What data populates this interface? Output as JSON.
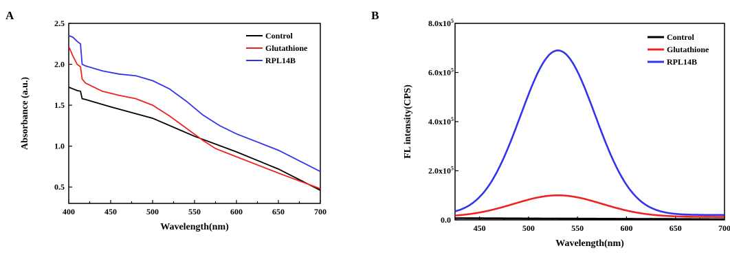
{
  "figure": {
    "panels": [
      "A",
      "B"
    ]
  },
  "chart_data": [
    {
      "panel": "A",
      "type": "line",
      "xlabel": "Wavelength(nm)",
      "ylabel": "Absorbance (a.u.)",
      "xlim": [
        400,
        700
      ],
      "ylim": [
        0.3,
        2.5
      ],
      "xticks": [
        400,
        450,
        500,
        550,
        600,
        650,
        700
      ],
      "xtick_labels": [
        "400",
        "450",
        "500",
        "550",
        "600",
        "650",
        "700"
      ],
      "yticks": [
        0.5,
        1.0,
        1.5,
        2.0,
        2.5
      ],
      "ytick_labels": [
        "0.5",
        "1.0",
        "1.5",
        "2.0",
        "2.5"
      ],
      "grid": false,
      "legend_position": "top-right",
      "series": [
        {
          "name": "Control",
          "color": "#000000",
          "points": [
            [
              400,
              1.72
            ],
            [
              405,
              1.7
            ],
            [
              410,
              1.68
            ],
            [
              414,
              1.67
            ],
            [
              416,
              1.58
            ],
            [
              420,
              1.57
            ],
            [
              450,
              1.48
            ],
            [
              500,
              1.34
            ],
            [
              550,
              1.12
            ],
            [
              600,
              0.93
            ],
            [
              650,
              0.72
            ],
            [
              700,
              0.46
            ]
          ]
        },
        {
          "name": "Glutathione",
          "color": "#ee2222",
          "points": [
            [
              400,
              2.22
            ],
            [
              405,
              2.1
            ],
            [
              410,
              2.0
            ],
            [
              414,
              1.97
            ],
            [
              416,
              1.82
            ],
            [
              420,
              1.77
            ],
            [
              440,
              1.67
            ],
            [
              460,
              1.62
            ],
            [
              480,
              1.58
            ],
            [
              500,
              1.5
            ],
            [
              520,
              1.37
            ],
            [
              540,
              1.22
            ],
            [
              560,
              1.07
            ],
            [
              575,
              0.97
            ],
            [
              600,
              0.87
            ],
            [
              650,
              0.67
            ],
            [
              700,
              0.48
            ]
          ]
        },
        {
          "name": "RPL14B",
          "color": "#3333ee",
          "points": [
            [
              400,
              2.35
            ],
            [
              405,
              2.33
            ],
            [
              410,
              2.28
            ],
            [
              414,
              2.25
            ],
            [
              416,
              2.0
            ],
            [
              420,
              1.98
            ],
            [
              440,
              1.92
            ],
            [
              460,
              1.88
            ],
            [
              480,
              1.86
            ],
            [
              500,
              1.8
            ],
            [
              520,
              1.7
            ],
            [
              540,
              1.55
            ],
            [
              560,
              1.38
            ],
            [
              580,
              1.25
            ],
            [
              600,
              1.15
            ],
            [
              625,
              1.05
            ],
            [
              650,
              0.95
            ],
            [
              675,
              0.82
            ],
            [
              700,
              0.69
            ]
          ]
        }
      ]
    },
    {
      "panel": "B",
      "type": "line",
      "xlabel": "Wavelength(nm)",
      "ylabel": "FL intensity(CPS)",
      "xlim": [
        425,
        700
      ],
      "ylim": [
        0,
        800000
      ],
      "xticks": [
        450,
        500,
        550,
        600,
        650,
        700
      ],
      "xtick_labels": [
        "450",
        "500",
        "550",
        "600",
        "650",
        "700"
      ],
      "yticks": [
        0,
        200000,
        400000,
        600000,
        800000
      ],
      "ytick_labels": [
        {
          "base": "0.0",
          "exp": ""
        },
        {
          "base": "2.0x10",
          "exp": "5"
        },
        {
          "base": "4.0x10",
          "exp": "5"
        },
        {
          "base": "6.0x10",
          "exp": "5"
        },
        {
          "base": "8.0x10",
          "exp": "5"
        }
      ],
      "grid": false,
      "legend_position": "top-right",
      "series": [
        {
          "name": "Control",
          "color": "#000000",
          "peak": {
            "x": 530,
            "y": 5000,
            "sigma": 120
          },
          "baseline": 7000
        },
        {
          "name": "Glutathione",
          "color": "#ee2222",
          "peak": {
            "x": 530,
            "y": 100000,
            "sigma": 45
          },
          "baseline": 12000
        },
        {
          "name": "RPL14B",
          "color": "#3333ee",
          "peak": {
            "x": 530,
            "y": 690000,
            "sigma": 38
          },
          "baseline": 20000
        }
      ]
    }
  ]
}
